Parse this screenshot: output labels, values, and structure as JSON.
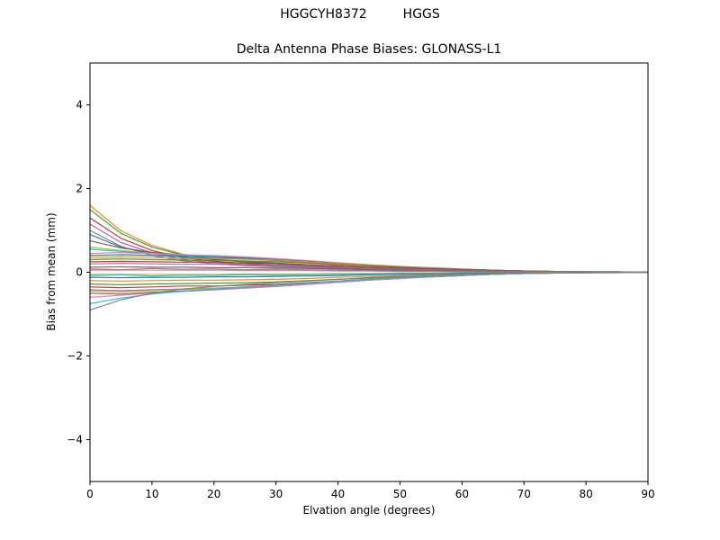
{
  "figure": {
    "suptitle_left": "HGGCYH8372",
    "suptitle_right": "HGGS",
    "title": "Delta Antenna Phase Biases: GLONASS-L1"
  },
  "chart_data": {
    "type": "line",
    "suptitle": "HGGCYH8372       HGGS",
    "title": "Delta Antenna Phase Biases: GLONASS-L1",
    "xlabel": "Elvation angle (degrees)",
    "ylabel": "Bias from mean (mm)",
    "xlim": [
      0,
      90
    ],
    "ylim": [
      -5,
      5
    ],
    "xticks": [
      0,
      10,
      20,
      30,
      40,
      50,
      60,
      70,
      80,
      90
    ],
    "yticks": [
      -4,
      -2,
      0,
      2,
      4
    ],
    "grid": false,
    "legend": "none",
    "x": [
      0,
      5,
      10,
      15,
      20,
      25,
      30,
      35,
      40,
      45,
      50,
      55,
      60,
      65,
      70,
      75,
      80,
      85,
      90
    ],
    "series": [
      {
        "color": "#ff7f0e",
        "values": [
          1.6,
          0.99,
          0.64,
          0.43,
          0.32,
          0.26,
          0.21,
          0.16,
          0.13,
          0.1,
          0.08,
          0.06,
          0.05,
          0.03,
          0.02,
          0.02,
          0.01,
          0.0,
          0.0
        ]
      },
      {
        "color": "#2ca02c",
        "values": [
          1.5,
          0.93,
          0.6,
          0.41,
          0.3,
          0.24,
          0.2,
          0.15,
          0.12,
          0.09,
          0.08,
          0.06,
          0.05,
          0.03,
          0.02,
          0.02,
          0.01,
          0.0,
          0.0
        ]
      },
      {
        "color": "#d62728",
        "values": [
          1.3,
          0.81,
          0.52,
          0.35,
          0.26,
          0.21,
          0.17,
          0.13,
          0.1,
          0.08,
          0.07,
          0.05,
          0.04,
          0.03,
          0.02,
          0.01,
          0.01,
          0.0,
          0.0
        ]
      },
      {
        "color": "#9467bd",
        "values": [
          1.15,
          0.71,
          0.46,
          0.31,
          0.23,
          0.18,
          0.15,
          0.12,
          0.09,
          0.07,
          0.06,
          0.05,
          0.03,
          0.02,
          0.02,
          0.01,
          0.01,
          0.0,
          0.0
        ]
      },
      {
        "color": "#7f7f7f",
        "values": [
          1.0,
          0.62,
          0.4,
          0.27,
          0.2,
          0.16,
          0.13,
          0.1,
          0.08,
          0.06,
          0.05,
          0.04,
          0.03,
          0.02,
          0.02,
          0.01,
          0.01,
          0.0,
          0.0
        ]
      },
      {
        "color": "#1f77b4",
        "values": [
          0.9,
          0.6,
          0.45,
          0.36,
          0.3,
          0.26,
          0.22,
          0.18,
          0.14,
          0.11,
          0.09,
          0.07,
          0.05,
          0.03,
          0.02,
          0.02,
          0.01,
          0.0,
          0.0
        ]
      },
      {
        "color": "#8c564b",
        "values": [
          0.75,
          0.58,
          0.48,
          0.41,
          0.36,
          0.32,
          0.28,
          0.24,
          0.19,
          0.15,
          0.12,
          0.09,
          0.07,
          0.04,
          0.03,
          0.02,
          0.01,
          0.01,
          0.0
        ]
      },
      {
        "color": "#bcbd22",
        "values": [
          0.6,
          0.52,
          0.45,
          0.4,
          0.37,
          0.34,
          0.3,
          0.26,
          0.21,
          0.17,
          0.13,
          0.1,
          0.07,
          0.05,
          0.03,
          0.02,
          0.01,
          0.01,
          0.0
        ]
      },
      {
        "color": "#17becf",
        "values": [
          0.55,
          0.5,
          0.44,
          0.4,
          0.38,
          0.35,
          0.31,
          0.26,
          0.21,
          0.17,
          0.13,
          0.1,
          0.07,
          0.05,
          0.03,
          0.02,
          0.01,
          0.01,
          0.0
        ]
      },
      {
        "color": "#e377c2",
        "values": [
          0.45,
          0.47,
          0.44,
          0.42,
          0.4,
          0.37,
          0.33,
          0.28,
          0.23,
          0.18,
          0.14,
          0.11,
          0.08,
          0.05,
          0.03,
          0.02,
          0.01,
          0.01,
          0.0
        ]
      },
      {
        "color": "#1f77b4",
        "values": [
          0.4,
          0.42,
          0.4,
          0.38,
          0.36,
          0.34,
          0.3,
          0.26,
          0.21,
          0.17,
          0.13,
          0.1,
          0.07,
          0.05,
          0.03,
          0.02,
          0.01,
          0.01,
          0.0
        ]
      },
      {
        "color": "#ff7f0e",
        "values": [
          0.35,
          0.37,
          0.35,
          0.33,
          0.33,
          0.31,
          0.29,
          0.25,
          0.21,
          0.17,
          0.13,
          0.1,
          0.07,
          0.05,
          0.03,
          0.02,
          0.01,
          0.0,
          0.0
        ]
      },
      {
        "color": "#2ca02c",
        "values": [
          0.3,
          0.32,
          0.3,
          0.29,
          0.28,
          0.27,
          0.25,
          0.22,
          0.18,
          0.15,
          0.12,
          0.09,
          0.07,
          0.05,
          0.03,
          0.02,
          0.01,
          0.0,
          0.0
        ]
      },
      {
        "color": "#d62728",
        "values": [
          0.25,
          0.26,
          0.25,
          0.24,
          0.24,
          0.22,
          0.21,
          0.18,
          0.15,
          0.12,
          0.1,
          0.08,
          0.06,
          0.04,
          0.03,
          0.02,
          0.01,
          0.0,
          0.0
        ]
      },
      {
        "color": "#9467bd",
        "values": [
          0.2,
          0.21,
          0.2,
          0.19,
          0.19,
          0.18,
          0.17,
          0.15,
          0.12,
          0.1,
          0.08,
          0.06,
          0.05,
          0.03,
          0.02,
          0.01,
          0.01,
          0.0,
          0.0
        ]
      },
      {
        "color": "#8c564b",
        "values": [
          0.12,
          0.13,
          0.12,
          0.12,
          0.11,
          0.11,
          0.1,
          0.09,
          0.08,
          0.06,
          0.05,
          0.04,
          0.03,
          0.02,
          0.01,
          0.01,
          0.0,
          0.0,
          0.0
        ]
      },
      {
        "color": "#e377c2",
        "values": [
          0.05,
          0.05,
          0.05,
          0.05,
          0.05,
          0.04,
          0.04,
          0.04,
          0.03,
          0.03,
          0.02,
          0.02,
          0.01,
          0.01,
          0.01,
          0.0,
          0.0,
          0.0,
          0.0
        ]
      },
      {
        "color": "#7f7f7f",
        "values": [
          0.08,
          0.06,
          0.09,
          0.07,
          0.08,
          0.06,
          0.07,
          0.06,
          0.05,
          0.04,
          0.03,
          0.03,
          0.02,
          0.01,
          0.01,
          0.01,
          0.0,
          0.0,
          0.0
        ]
      },
      {
        "color": "#bcbd22",
        "values": [
          -0.05,
          -0.05,
          -0.05,
          -0.05,
          -0.05,
          -0.04,
          -0.04,
          -0.04,
          -0.03,
          -0.03,
          -0.02,
          -0.02,
          -0.01,
          -0.01,
          -0.01,
          0.0,
          0.0,
          0.0,
          0.0
        ]
      },
      {
        "color": "#17becf",
        "values": [
          -0.08,
          -0.06,
          -0.09,
          -0.07,
          -0.08,
          -0.06,
          -0.07,
          -0.06,
          -0.05,
          -0.04,
          -0.03,
          -0.03,
          -0.02,
          -0.01,
          -0.01,
          -0.01,
          0.0,
          0.0,
          0.0
        ]
      },
      {
        "color": "#1f77b4",
        "values": [
          -0.12,
          -0.13,
          -0.12,
          -0.12,
          -0.11,
          -0.11,
          -0.1,
          -0.09,
          -0.08,
          -0.06,
          -0.05,
          -0.04,
          -0.03,
          -0.02,
          -0.01,
          -0.01,
          0.0,
          0.0,
          0.0
        ]
      },
      {
        "color": "#ff7f0e",
        "values": [
          -0.2,
          -0.21,
          -0.2,
          -0.19,
          -0.19,
          -0.18,
          -0.17,
          -0.15,
          -0.12,
          -0.1,
          -0.08,
          -0.06,
          -0.05,
          -0.03,
          -0.02,
          -0.01,
          -0.01,
          0.0,
          0.0
        ]
      },
      {
        "color": "#2ca02c",
        "values": [
          -0.28,
          -0.3,
          -0.28,
          -0.27,
          -0.26,
          -0.25,
          -0.23,
          -0.2,
          -0.17,
          -0.14,
          -0.11,
          -0.08,
          -0.06,
          -0.04,
          -0.03,
          -0.02,
          -0.01,
          0.0,
          0.0
        ]
      },
      {
        "color": "#d62728",
        "values": [
          -0.35,
          -0.37,
          -0.35,
          -0.33,
          -0.33,
          -0.31,
          -0.29,
          -0.25,
          -0.21,
          -0.17,
          -0.13,
          -0.1,
          -0.07,
          -0.05,
          -0.03,
          -0.02,
          -0.01,
          0.0,
          0.0
        ]
      },
      {
        "color": "#9467bd",
        "values": [
          -0.42,
          -0.44,
          -0.42,
          -0.4,
          -0.38,
          -0.35,
          -0.31,
          -0.27,
          -0.22,
          -0.18,
          -0.14,
          -0.11,
          -0.08,
          -0.05,
          -0.03,
          -0.02,
          -0.01,
          -0.01,
          0.0
        ]
      },
      {
        "color": "#bcbd22",
        "values": [
          -0.45,
          -0.47,
          -0.44,
          -0.41,
          -0.39,
          -0.36,
          -0.32,
          -0.27,
          -0.22,
          -0.18,
          -0.14,
          -0.11,
          -0.08,
          -0.05,
          -0.03,
          -0.02,
          -0.01,
          -0.01,
          0.0
        ]
      },
      {
        "color": "#8c564b",
        "values": [
          -0.5,
          -0.52,
          -0.48,
          -0.45,
          -0.42,
          -0.38,
          -0.34,
          -0.29,
          -0.24,
          -0.19,
          -0.15,
          -0.11,
          -0.08,
          -0.05,
          -0.03,
          -0.02,
          -0.01,
          -0.01,
          0.0
        ]
      },
      {
        "color": "#e377c2",
        "values": [
          -0.6,
          -0.55,
          -0.5,
          -0.46,
          -0.42,
          -0.38,
          -0.34,
          -0.29,
          -0.24,
          -0.19,
          -0.15,
          -0.11,
          -0.08,
          -0.05,
          -0.03,
          -0.02,
          -0.01,
          -0.01,
          0.0
        ]
      },
      {
        "color": "#17becf",
        "values": [
          -0.75,
          -0.62,
          -0.52,
          -0.45,
          -0.4,
          -0.36,
          -0.31,
          -0.26,
          -0.21,
          -0.17,
          -0.13,
          -0.1,
          -0.07,
          -0.05,
          -0.03,
          -0.02,
          -0.01,
          0.0,
          0.0
        ]
      },
      {
        "color": "#7f7f7f",
        "values": [
          -0.9,
          -0.66,
          -0.5,
          -0.4,
          -0.34,
          -0.29,
          -0.25,
          -0.21,
          -0.17,
          -0.13,
          -0.1,
          -0.08,
          -0.06,
          -0.04,
          -0.02,
          -0.02,
          -0.01,
          0.0,
          0.0
        ]
      }
    ]
  }
}
